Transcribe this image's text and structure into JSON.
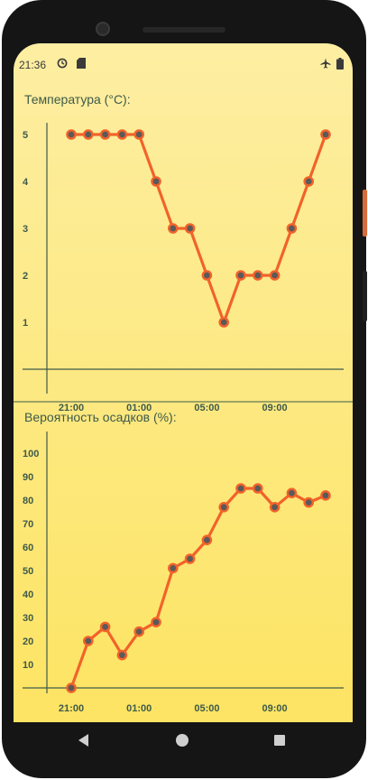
{
  "status_bar": {
    "time": "21:36",
    "left_icons": [
      "sync-icon",
      "sd-card-icon"
    ],
    "right_icons": [
      "airplane-icon",
      "battery-icon"
    ]
  },
  "colors": {
    "background_top": "#fdeea2",
    "background_bottom": "#fde463",
    "axis": "#3e5a4a",
    "line": "#f2622a",
    "point_fill": "#5a5a5a"
  },
  "chart_data": [
    {
      "type": "line",
      "title": "Температура (°C):",
      "x": [
        "21:00",
        "22:00",
        "23:00",
        "00:00",
        "01:00",
        "02:00",
        "03:00",
        "04:00",
        "05:00",
        "06:00",
        "07:00",
        "08:00",
        "09:00",
        "10:00",
        "11:00",
        "12:00"
      ],
      "x_tick_labels": [
        "21:00",
        "01:00",
        "05:00",
        "09:00"
      ],
      "y_tick_labels": [
        "1",
        "2",
        "3",
        "4",
        "5"
      ],
      "values": [
        5,
        5,
        5,
        5,
        5,
        4,
        3,
        3,
        2,
        1,
        2,
        2,
        2,
        3,
        4,
        5
      ],
      "ylim": [
        0,
        5
      ],
      "grid": false
    },
    {
      "type": "line",
      "title": "Вероятность осадков (%):",
      "x": [
        "21:00",
        "22:00",
        "23:00",
        "00:00",
        "01:00",
        "02:00",
        "03:00",
        "04:00",
        "05:00",
        "06:00",
        "07:00",
        "08:00",
        "09:00",
        "10:00",
        "11:00",
        "12:00"
      ],
      "x_tick_labels": [
        "21:00",
        "01:00",
        "05:00",
        "09:00"
      ],
      "y_tick_labels": [
        "10",
        "20",
        "30",
        "40",
        "50",
        "60",
        "70",
        "80",
        "90",
        "100"
      ],
      "values": [
        0,
        20,
        26,
        14,
        24,
        28,
        51,
        55,
        63,
        77,
        85,
        85,
        77,
        83,
        79,
        82
      ],
      "ylim": [
        0,
        100
      ],
      "grid": false
    }
  ]
}
